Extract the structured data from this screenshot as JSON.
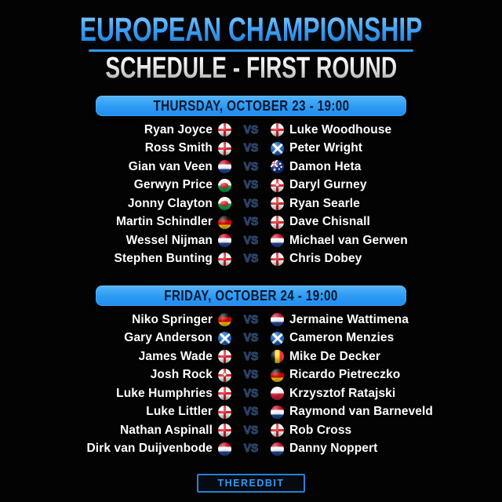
{
  "header": {
    "title": "EUROPEAN CHAMPIONSHIP",
    "subtitle": "SCHEDULE - FIRST ROUND"
  },
  "vs_label": "VS",
  "sessions": [
    {
      "banner": "THURSDAY, OCTOBER 23 - 19:00",
      "matches": [
        {
          "p1": "Ryan Joyce",
          "f1": "england",
          "p2": "Luke Woodhouse",
          "f2": "england"
        },
        {
          "p1": "Ross Smith",
          "f1": "england",
          "p2": "Peter Wright",
          "f2": "scotland"
        },
        {
          "p1": "Gian van Veen",
          "f1": "netherlands",
          "p2": "Damon Heta",
          "f2": "australia"
        },
        {
          "p1": "Gerwyn Price",
          "f1": "wales",
          "p2": "Daryl Gurney",
          "f2": "northern-ireland"
        },
        {
          "p1": "Jonny Clayton",
          "f1": "wales",
          "p2": "Ryan Searle",
          "f2": "england"
        },
        {
          "p1": "Martin Schindler",
          "f1": "germany",
          "p2": "Dave Chisnall",
          "f2": "england"
        },
        {
          "p1": "Wessel Nijman",
          "f1": "netherlands",
          "p2": "Michael van Gerwen",
          "f2": "netherlands"
        },
        {
          "p1": "Stephen Bunting",
          "f1": "england",
          "p2": "Chris Dobey",
          "f2": "england"
        }
      ]
    },
    {
      "banner": "FRIDAY, OCTOBER 24 - 19:00",
      "matches": [
        {
          "p1": "Niko Springer",
          "f1": "germany",
          "p2": "Jermaine Wattimena",
          "f2": "netherlands"
        },
        {
          "p1": "Gary Anderson",
          "f1": "scotland",
          "p2": "Cameron Menzies",
          "f2": "scotland"
        },
        {
          "p1": "James Wade",
          "f1": "england",
          "p2": "Mike De Decker",
          "f2": "belgium"
        },
        {
          "p1": "Josh Rock",
          "f1": "northern-ireland",
          "p2": "Ricardo Pietreczko",
          "f2": "germany"
        },
        {
          "p1": "Luke Humphries",
          "f1": "england",
          "p2": "Krzysztof Ratajski",
          "f2": "poland"
        },
        {
          "p1": "Luke Littler",
          "f1": "england",
          "p2": "Raymond van Barneveld",
          "f2": "netherlands"
        },
        {
          "p1": "Nathan Aspinall",
          "f1": "england",
          "p2": "Rob Cross",
          "f2": "england"
        },
        {
          "p1": "Dirk van Duijvenbode",
          "f1": "netherlands",
          "p2": "Danny Noppert",
          "f2": "netherlands"
        }
      ]
    }
  ],
  "footer": {
    "brand": "THEREDBIT"
  },
  "colors": {
    "background": "#030303",
    "accent_blue": "#2e9cf5",
    "banner_gradient_top": "#55b4f8",
    "banner_gradient_bottom": "#1f8bf0",
    "banner_text": "#081831",
    "player_name": "#ffffff",
    "vs_text": "#0c1c38",
    "subtitle_text": "#ffffff"
  }
}
